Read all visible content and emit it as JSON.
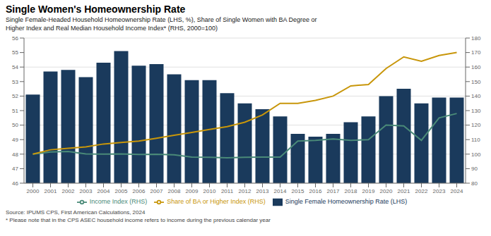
{
  "chart_data": {
    "type": "bar",
    "title": "Single Women's Homeownership Rate",
    "subtitle": "Single Female-Headed Household Homeownership Rate (LHS, %), Share of Single Women with BA Degree or\nHigher Index and Real Median Household Income Index* (RHS, 2000=100)",
    "annotations": [
      "Source: IPUMS CPS, First American Calculations, 2024",
      "* Please note that in the CPS ASEC household income refers to income during the previous calendar year"
    ],
    "categories": [
      "2000",
      "2001",
      "2002",
      "2003",
      "2004",
      "2005",
      "2006",
      "2007",
      "2008",
      "2009",
      "2010",
      "2011",
      "2012",
      "2013",
      "2014",
      "2015",
      "2016",
      "2017",
      "2018",
      "2019",
      "2020",
      "2021",
      "2022",
      "2023",
      "2024"
    ],
    "series": [
      {
        "name": "Single Female Homeownership Rate (LHS)",
        "type": "bar",
        "color": "#1a3a5c",
        "values": [
          52.1,
          53.7,
          53.8,
          53.3,
          54.3,
          55.1,
          54.1,
          54.2,
          53.5,
          53.1,
          53.1,
          52.2,
          51.5,
          51.1,
          50.6,
          49.4,
          49.2,
          49.4,
          50.2,
          50.6,
          52.0,
          52.5,
          51.5,
          51.9,
          51.9
        ]
      },
      {
        "name": "Income Index (RHS)",
        "type": "line",
        "axis": "y2",
        "color": "#4a8a78",
        "values": [
          100,
          101.5,
          101.8,
          100.1,
          100.0,
          100.1,
          99.8,
          99.9,
          99.5,
          98.0,
          97.8,
          97.5,
          97.9,
          98.0,
          98.0,
          109.0,
          109.5,
          110.5,
          109.5,
          110.0,
          120.0,
          119.5,
          109.5,
          125.0,
          128.0
        ]
      },
      {
        "name": "Share of BA or Higher Index (RHS)",
        "type": "line",
        "axis": "y2",
        "color": "#c8960a",
        "values": [
          100,
          103,
          104,
          105,
          107,
          108,
          109,
          111,
          113,
          115,
          117,
          119,
          122,
          127,
          135,
          135,
          137,
          140,
          147,
          148,
          159,
          167,
          164,
          168,
          170
        ]
      }
    ],
    "ylim": [
      46,
      56
    ],
    "yticks": [
      46,
      47,
      48,
      49,
      50,
      51,
      52,
      53,
      54,
      55,
      56
    ],
    "y2lim": [
      80,
      180
    ],
    "y2ticks": [
      80,
      90,
      100,
      110,
      120,
      130,
      140,
      150,
      160,
      170,
      180
    ],
    "grid": true,
    "legend": "bottom"
  }
}
